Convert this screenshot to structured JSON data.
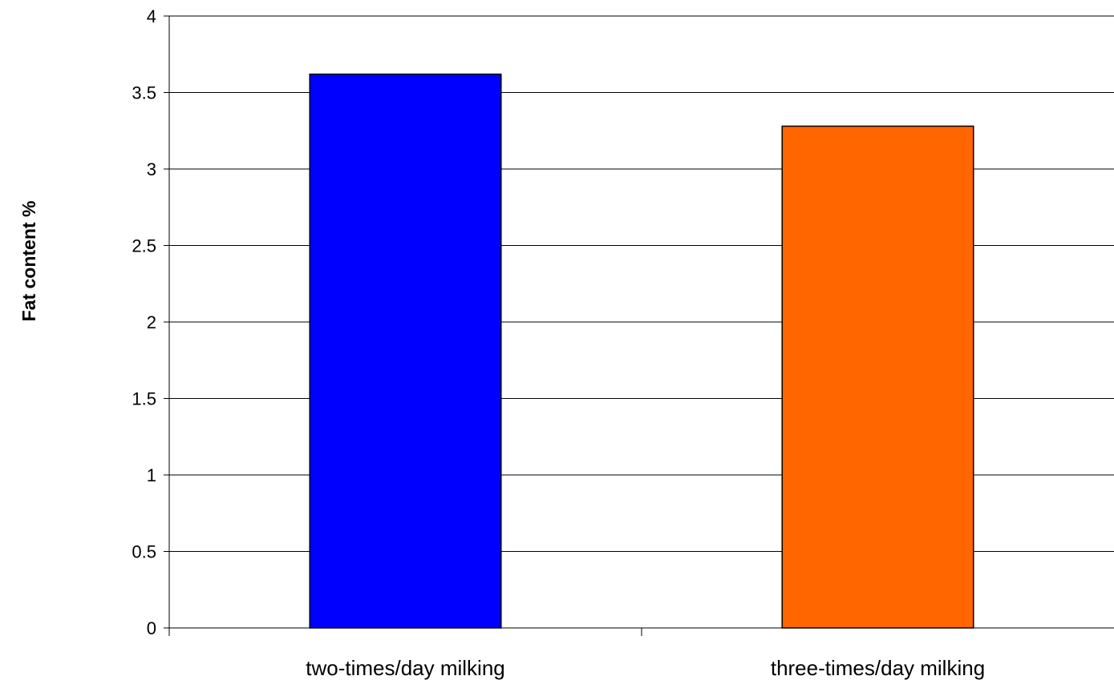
{
  "chart_data": {
    "type": "bar",
    "title": "",
    "xlabel": "",
    "ylabel": "Fat content %",
    "categories": [
      "two-times/day milking",
      "three-times/day milking"
    ],
    "values": [
      3.62,
      3.28
    ],
    "bar_colors": [
      "#0000ff",
      "#ff6600"
    ],
    "ylim": [
      0,
      4
    ],
    "yticks": [
      0,
      0.5,
      1,
      1.5,
      2,
      2.5,
      3,
      3.5,
      4
    ],
    "ytick_labels": [
      "0",
      "0.5",
      "1",
      "1.5",
      "2",
      "2.5",
      "3",
      "3.5",
      "4"
    ],
    "grid": true,
    "legend": "none"
  }
}
